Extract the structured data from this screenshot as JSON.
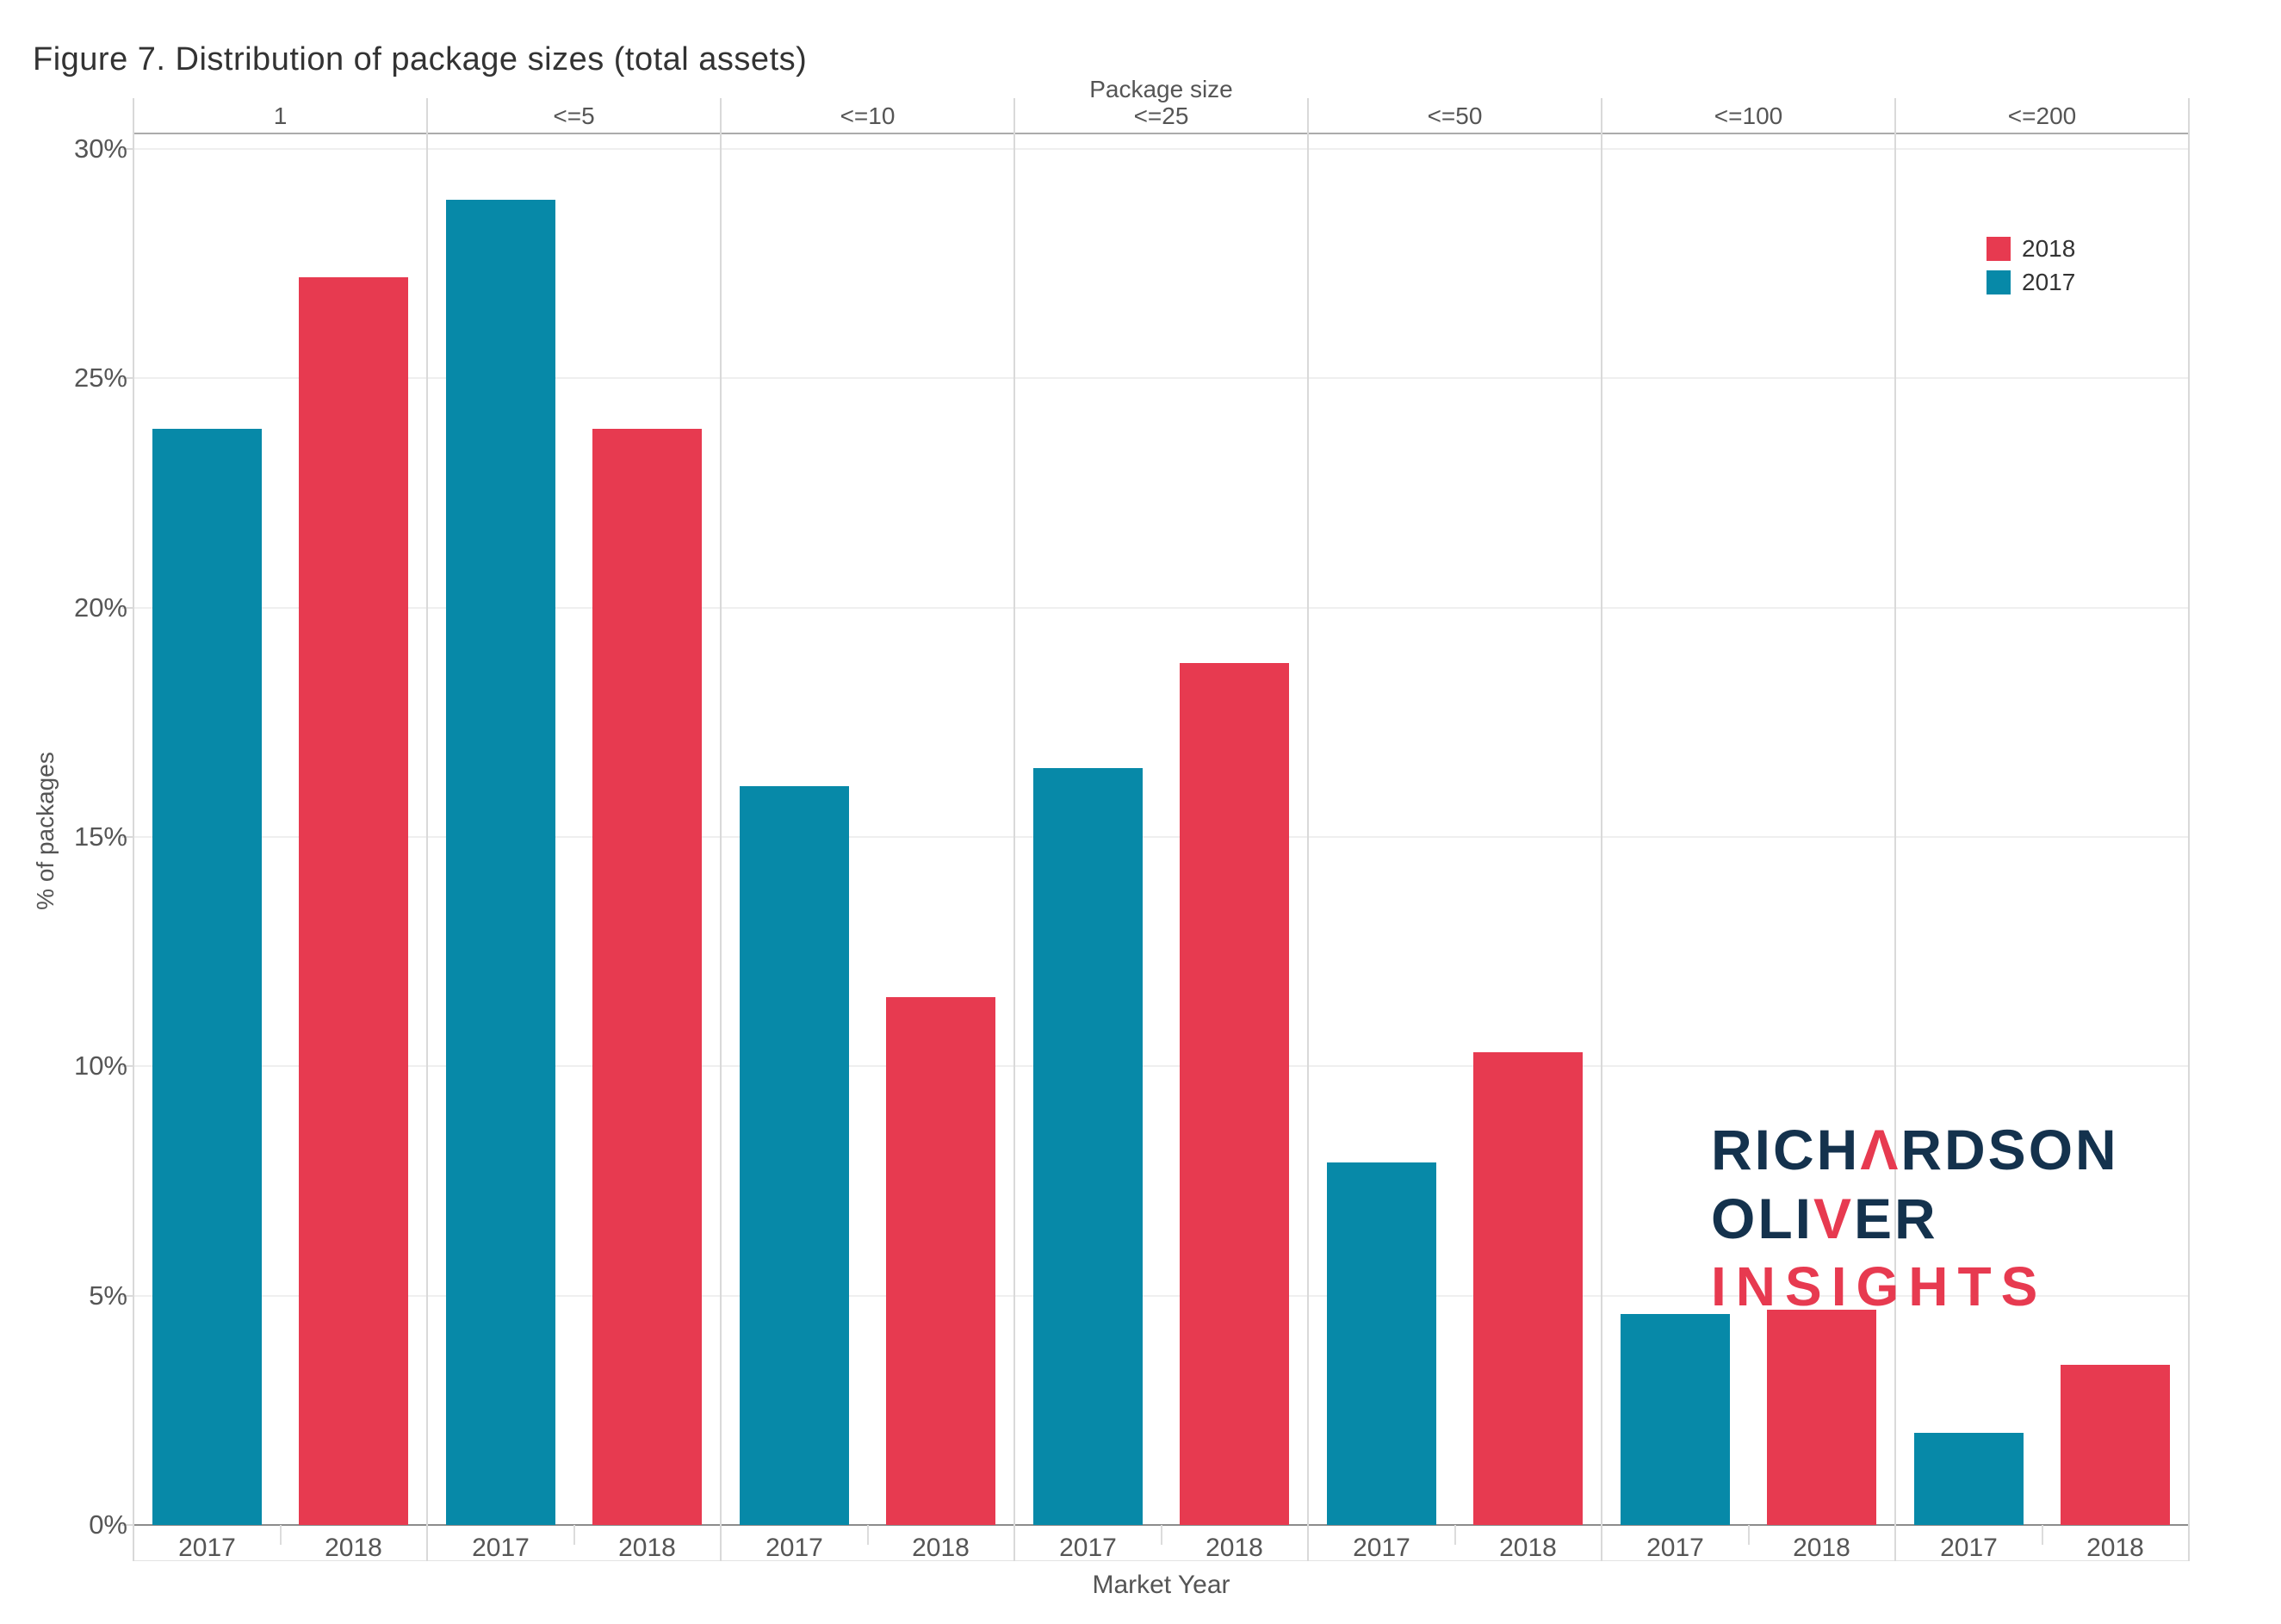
{
  "title": "Figure 7. Distribution of package sizes (total assets)",
  "chart_data": {
    "type": "bar",
    "title": "Figure 7. Distribution of package sizes (total assets)",
    "group_axis_label": "Package size",
    "xlabel": "Market Year",
    "ylabel": "% of packages",
    "categories": [
      "1",
      "<=5",
      "<=10",
      "<=25",
      "<=50",
      "<=100",
      "<=200"
    ],
    "x_sublabels": [
      "2017",
      "2018"
    ],
    "series": [
      {
        "name": "2017",
        "color": "#0789a8",
        "values": [
          23.9,
          28.9,
          16.1,
          16.5,
          7.9,
          4.6,
          2.0
        ]
      },
      {
        "name": "2018",
        "color": "#e73a50",
        "values": [
          27.2,
          23.9,
          11.5,
          18.8,
          10.3,
          4.7,
          3.5
        ]
      }
    ],
    "ylim": [
      0,
      30
    ],
    "ytick_step": 5,
    "ytick_labels": [
      "0%",
      "5%",
      "10%",
      "15%",
      "20%",
      "25%",
      "30%"
    ],
    "grid": "horizontal",
    "legend_position": "top-right-inside",
    "legend_order": [
      "2018",
      "2017"
    ]
  },
  "legend": {
    "items": [
      {
        "label": "2018",
        "color": "#e73a50"
      },
      {
        "label": "2017",
        "color": "#0789a8"
      }
    ]
  },
  "watermark": {
    "line1_pre": "RICH",
    "line1_accent": "Λ",
    "line1_post": "RDSON",
    "line2_pre": "OLI",
    "line2_accent": "V",
    "line2_post": "ER",
    "line3": "INSIGHTS",
    "navy": "#14324d",
    "red": "#e73a50"
  }
}
